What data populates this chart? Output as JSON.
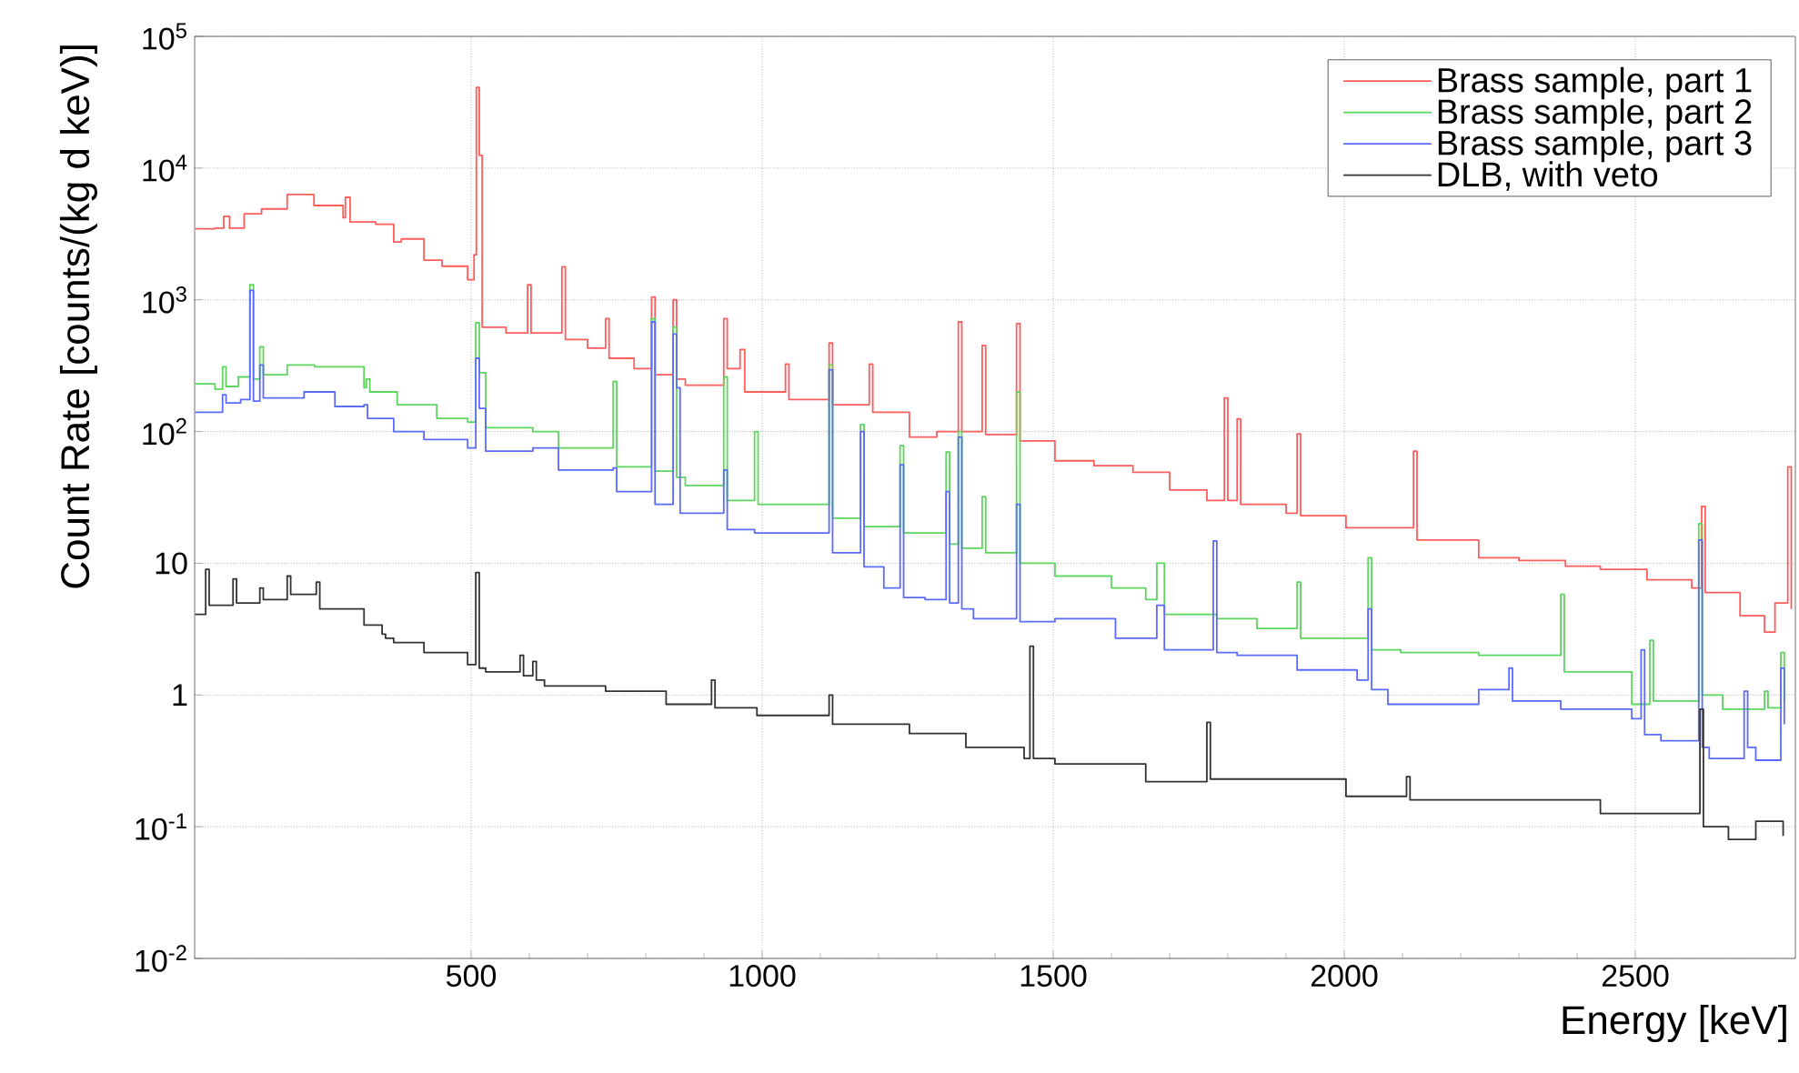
{
  "chart_data": {
    "type": "step",
    "xlabel": "Energy [keV]",
    "ylabel": "Count Rate [counts/(kg d keV)]",
    "xlim": [
      25,
      2775
    ],
    "xticks": [
      500,
      1000,
      1500,
      2000,
      2500
    ],
    "ylim": [
      0.01,
      100000
    ],
    "log": "y",
    "yticks": [
      {
        "value": 0.01,
        "label": "10$^{-2}$"
      },
      {
        "value": 0.1,
        "label": "10$^{-1}$"
      },
      1,
      10,
      {
        "value": 100,
        "label": "10$^{2}$"
      },
      {
        "value": 1000,
        "label": "10$^{3}$"
      },
      {
        "value": 10000,
        "label": "10$^{4}$"
      },
      {
        "value": 100000,
        "label": "10$^{5}$"
      }
    ],
    "grid": true,
    "legend": "top right",
    "line_style": "solid",
    "marker": "none",
    "series": [
      {
        "name": "Brass sample, part 1",
        "color": "#ff5c5c",
        "x": [
          26,
          60,
          75,
          85,
          110,
          140,
          184,
          230,
          280,
          284,
          292,
          336,
          367,
          380,
          419,
          450,
          494,
          505,
          509,
          514,
          519,
          560,
          597,
          603,
          656,
          662,
          700,
          731,
          737,
          780,
          810,
          816,
          847,
          853,
          868,
          934,
          940,
          962,
          970,
          1040,
          1046,
          1115,
          1121,
          1184,
          1190,
          1253,
          1300,
          1337,
          1343,
          1378,
          1384,
          1437,
          1443,
          1503,
          1570,
          1637,
          1700,
          1764,
          1794,
          1800,
          1816,
          1822,
          1900,
          1919,
          1925,
          2003,
          2119,
          2125,
          2231,
          2300,
          2380,
          2440,
          2520,
          2597,
          2614,
          2620,
          2680,
          2722,
          2740,
          2762,
          2768
        ],
        "values": [
          3460,
          3500,
          4300,
          3500,
          4500,
          4900,
          6300,
          5200,
          4200,
          6000,
          3900,
          3750,
          2750,
          2900,
          2000,
          1800,
          1420,
          2200,
          41000,
          12500,
          620,
          560,
          1300,
          560,
          1780,
          500,
          430,
          720,
          360,
          300,
          1050,
          270,
          1000,
          250,
          225,
          720,
          300,
          420,
          200,
          325,
          175,
          470,
          160,
          325,
          140,
          91,
          100,
          680,
          100,
          450,
          95,
          660,
          85,
          60,
          55,
          49,
          36,
          30,
          180,
          30,
          125,
          28,
          24,
          96,
          23,
          18.6,
          71,
          15,
          11,
          10.5,
          9.5,
          9,
          7.5,
          6.5,
          27,
          6,
          4,
          3.0,
          5,
          54,
          4.5
        ]
      },
      {
        "name": "Brass sample, part 2",
        "color": "#5cd65c",
        "x": [
          26,
          60,
          73,
          79,
          100,
          120,
          126,
          137,
          143,
          184,
          231,
          316,
          320,
          326,
          367,
          373,
          441,
          494,
          508,
          514,
          525,
          606,
          650,
          744,
          750,
          810,
          816,
          847,
          853,
          868,
          934,
          940,
          987,
          993,
          1040,
          1115,
          1121,
          1169,
          1175,
          1237,
          1243,
          1316,
          1322,
          1337,
          1343,
          1378,
          1384,
          1437,
          1443,
          1503,
          1600,
          1659,
          1678,
          1691,
          1775,
          1781,
          1850,
          1919,
          1925,
          2041,
          2047,
          2097,
          2231,
          2372,
          2378,
          2494,
          2525,
          2531,
          2609,
          2615,
          2650,
          2722,
          2728,
          2750,
          2756
        ],
        "values": [
          230,
          210,
          310,
          220,
          260,
          1300,
          250,
          440,
          270,
          320,
          310,
          215,
          250,
          200,
          200,
          160,
          126,
          118,
          670,
          280,
          107,
          100,
          75,
          240,
          54,
          720,
          50,
          620,
          45,
          39,
          260,
          30,
          100,
          28,
          28,
          320,
          22,
          113,
          19,
          78,
          17,
          70,
          14,
          100,
          13,
          32,
          12,
          200,
          10,
          8,
          6.5,
          5.3,
          10,
          4.1,
          null,
          3.8,
          3.2,
          7.2,
          2.7,
          11,
          2.2,
          2.1,
          2.0,
          5.8,
          1.5,
          0.85,
          2.6,
          0.9,
          20,
          1.0,
          0.78,
          1.07,
          0.8,
          2.1,
          0.9
        ]
      },
      {
        "name": "Brass sample, part 3",
        "color": "#5c6bff",
        "x": [
          26,
          73,
          79,
          104,
          120,
          126,
          137,
          143,
          213,
          266,
          316,
          322,
          367,
          419,
          494,
          508,
          514,
          525,
          606,
          650,
          744,
          750,
          810,
          816,
          847,
          853,
          859,
          934,
          940,
          987,
          1115,
          1121,
          1169,
          1175,
          1209,
          1237,
          1243,
          1280,
          1316,
          1322,
          1337,
          1343,
          1363,
          1437,
          1443,
          1503,
          1607,
          1678,
          1691,
          1775,
          1781,
          1816,
          1919,
          2022,
          2041,
          2047,
          2075,
          2231,
          2283,
          2289,
          2372,
          2494,
          2510,
          2516,
          2544,
          2609,
          2615,
          2627,
          2687,
          2693,
          2707,
          2750,
          2756
        ],
        "values": [
          140,
          190,
          165,
          175,
          1180,
          170,
          320,
          180,
          200,
          155,
          160,
          126,
          100,
          87,
          75,
          360,
          150,
          71,
          75,
          51,
          53,
          35,
          680,
          28,
          550,
          215,
          24,
          51,
          18,
          17,
          295,
          12,
          100,
          9.4,
          6.5,
          56,
          5.5,
          5.3,
          35,
          5,
          91,
          4.5,
          3.8,
          28,
          3.6,
          3.8,
          2.7,
          4.8,
          2.2,
          14.8,
          2.1,
          2.0,
          1.55,
          1.3,
          4.5,
          1.1,
          0.85,
          1.1,
          1.6,
          0.9,
          0.78,
          0.66,
          2.2,
          0.5,
          0.45,
          15,
          0.4,
          0.33,
          1.07,
          0.4,
          0.32,
          1.6,
          0.6
        ]
      },
      {
        "name": "DLB, with veto",
        "color": "#333333",
        "x": [
          26,
          44,
          50,
          91,
          97,
          137,
          143,
          184,
          190,
          234,
          240,
          316,
          347,
          353,
          367,
          419,
          494,
          508,
          514,
          525,
          584,
          590,
          606,
          612,
          626,
          731,
          835,
          913,
          919,
          991,
          1115,
          1121,
          1253,
          1350,
          1450,
          1460,
          1466,
          1503,
          1659,
          1764,
          1770,
          2003,
          2107,
          2113,
          2231,
          2440,
          2611,
          2617,
          2660,
          2707,
          2754
        ],
        "values": [
          4.1,
          9,
          4.8,
          7.6,
          5,
          6.5,
          5.3,
          8,
          5.8,
          7.2,
          4.5,
          3.4,
          2.9,
          2.7,
          2.5,
          2.1,
          1.7,
          8.5,
          1.6,
          1.5,
          2.0,
          1.4,
          1.8,
          1.3,
          1.17,
          1.07,
          0.85,
          1.3,
          0.8,
          0.7,
          1.0,
          0.6,
          0.51,
          0.4,
          0.33,
          2.35,
          0.33,
          0.3,
          0.22,
          0.62,
          0.23,
          0.17,
          0.24,
          0.16,
          0.16,
          0.126,
          0.78,
          0.1,
          0.08,
          0.11,
          0.085
        ]
      }
    ]
  }
}
